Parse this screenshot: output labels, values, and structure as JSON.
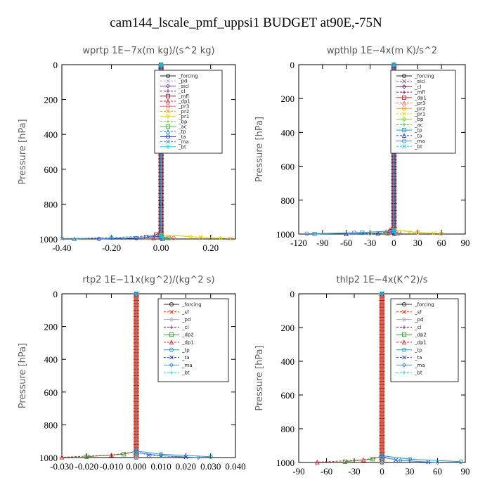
{
  "figure": {
    "title": "cam144_lscale_pmf_uppsi1  BUDGET at90E,-75N"
  },
  "colors": {
    "_forcing": "#222222",
    "_pd": "#b7a6d6",
    "_sicl": "#7b4f9d",
    "_cl": "#6a2a5a",
    "_mfl": "#8b1e3f",
    "_dp1": "#d62728",
    "_pr3": "#ff6b6b",
    "_pr2": "#ffa500",
    "_pr1": "#e6d800",
    "_bp": "#7ccd3a",
    "_ac": "#55b84a",
    "_tp": "#1f9ed8",
    "_ta": "#1f3fd8",
    "_ma": "#4a8fd0",
    "_bt": "#17d3e6",
    "_sf": "#ff2200",
    "_dp2": "#2f9e2f"
  },
  "chart_data": [
    {
      "type": "line",
      "title": "wprtp   1E−7x(m kg)/(s^2 kg)",
      "ylabel": "Pressure [hPa]",
      "xlim": [
        -0.4,
        0.3
      ],
      "ylim": [
        1000,
        0
      ],
      "xticks": [
        "-0.40",
        "-0.20",
        "0.00",
        "0.20"
      ],
      "xtick_values": [
        -0.4,
        -0.2,
        0.0,
        0.2
      ],
      "yticks": [
        "0",
        "200",
        "400",
        "600",
        "800",
        "1000"
      ],
      "legend_position": "top-right",
      "series": [
        {
          "name": "_forcing",
          "x": [
            0,
            0,
            0,
            0,
            0.01
          ],
          "y": [
            0,
            400,
            800,
            975,
            1000
          ]
        },
        {
          "name": "_pd",
          "x": [
            0,
            0,
            0.005
          ],
          "y": [
            0,
            975,
            1000
          ]
        },
        {
          "name": "_sicl",
          "x": [
            0,
            0,
            0
          ],
          "y": [
            0,
            975,
            1000
          ]
        },
        {
          "name": "_cl",
          "x": [
            0,
            0,
            0
          ],
          "y": [
            0,
            975,
            1000
          ]
        },
        {
          "name": "_mfl",
          "x": [
            0,
            0,
            -0.02,
            -0.06
          ],
          "y": [
            0,
            960,
            975,
            990
          ]
        },
        {
          "name": "_dp1",
          "x": [
            0,
            0,
            -0.01,
            -0.03
          ],
          "y": [
            0,
            965,
            980,
            995
          ]
        },
        {
          "name": "_pr3",
          "x": [
            0,
            0,
            0.05
          ],
          "y": [
            0,
            985,
            995
          ]
        },
        {
          "name": "_pr2",
          "x": [
            0,
            0,
            0.16,
            0.28
          ],
          "y": [
            0,
            975,
            990,
            998
          ]
        },
        {
          "name": "_pr1",
          "x": [
            0,
            0,
            0.12,
            0.24
          ],
          "y": [
            0,
            975,
            988,
            995
          ]
        },
        {
          "name": "_bp",
          "x": [
            0,
            0,
            -0.05,
            -0.15
          ],
          "y": [
            0,
            980,
            990,
            998
          ]
        },
        {
          "name": "_ac",
          "x": [
            0,
            0,
            0.03
          ],
          "y": [
            0,
            985,
            995
          ]
        },
        {
          "name": "_tp",
          "x": [
            0,
            0,
            -0.2,
            -0.35
          ],
          "y": [
            0,
            980,
            992,
            1000
          ]
        },
        {
          "name": "_ta",
          "x": [
            0,
            0,
            -0.1,
            -0.25
          ],
          "y": [
            0,
            985,
            995,
            1000
          ]
        },
        {
          "name": "_ma",
          "x": [
            0,
            0,
            -0.2,
            -0.4
          ],
          "y": [
            0,
            982,
            992,
            998
          ]
        },
        {
          "name": "_bt",
          "x": [
            0,
            0,
            0.01
          ],
          "y": [
            0,
            985,
            1000
          ]
        }
      ]
    },
    {
      "type": "line",
      "title": "wpthlp   1E−4x(m K)/s^2",
      "ylabel": "Pressure [hPa]",
      "xlim": [
        -120,
        90
      ],
      "ylim": [
        1000,
        0
      ],
      "xticks": [
        "-120",
        "-90",
        "-60",
        "-30",
        "0",
        "30",
        "60",
        "90"
      ],
      "xtick_values": [
        -120,
        -90,
        -60,
        -30,
        0,
        30,
        60,
        90
      ],
      "yticks": [
        "0",
        "200",
        "400",
        "600",
        "800",
        "1000"
      ],
      "legend_position": "top-right",
      "series": [
        {
          "name": "_forcing",
          "x": [
            0,
            0,
            0,
            1
          ],
          "y": [
            0,
            500,
            975,
            1000
          ]
        },
        {
          "name": "_sicl",
          "x": [
            0,
            0,
            0
          ],
          "y": [
            0,
            975,
            1000
          ]
        },
        {
          "name": "_cl",
          "x": [
            0,
            0,
            0
          ],
          "y": [
            0,
            975,
            1000
          ]
        },
        {
          "name": "_mfl",
          "x": [
            0,
            0,
            -5,
            -10
          ],
          "y": [
            0,
            960,
            975,
            985
          ]
        },
        {
          "name": "_dp1",
          "x": [
            0,
            0,
            -3,
            -8
          ],
          "y": [
            0,
            965,
            980,
            995
          ]
        },
        {
          "name": "_pr3",
          "x": [
            0,
            0,
            5
          ],
          "y": [
            0,
            980,
            995
          ]
        },
        {
          "name": "_pr2",
          "x": [
            0,
            0,
            30,
            60
          ],
          "y": [
            0,
            975,
            990,
            998
          ]
        },
        {
          "name": "_pr1",
          "x": [
            0,
            0,
            20,
            50
          ],
          "y": [
            0,
            975,
            988,
            995
          ]
        },
        {
          "name": "_bp",
          "x": [
            0,
            0,
            -10,
            -30
          ],
          "y": [
            0,
            980,
            990,
            998
          ]
        },
        {
          "name": "_ac",
          "x": [
            0,
            0,
            8
          ],
          "y": [
            0,
            985,
            995
          ]
        },
        {
          "name": "_tp",
          "x": [
            0,
            0,
            -40,
            -100
          ],
          "y": [
            0,
            980,
            992,
            1000
          ]
        },
        {
          "name": "_ta",
          "x": [
            0,
            0,
            -20,
            -60
          ],
          "y": [
            0,
            985,
            995,
            1000
          ]
        },
        {
          "name": "_ma",
          "x": [
            0,
            0,
            -50,
            -110
          ],
          "y": [
            0,
            982,
            992,
            998
          ]
        },
        {
          "name": "_bt",
          "x": [
            0,
            0,
            2
          ],
          "y": [
            0,
            985,
            1000
          ]
        }
      ]
    },
    {
      "type": "line",
      "title": "rtp2   1E−11x(kg^2)/(kg^2 s)",
      "ylabel": "Pressure [hPa]",
      "xlim": [
        -0.03,
        0.04
      ],
      "ylim": [
        1000,
        0
      ],
      "xticks": [
        "-0.030",
        "-0.020",
        "-0.010",
        "0.000",
        "0.010",
        "0.020",
        "0.030",
        "0.040"
      ],
      "xtick_values": [
        -0.03,
        -0.02,
        -0.01,
        0.0,
        0.01,
        0.02,
        0.03,
        0.04
      ],
      "yticks": [
        "0",
        "200",
        "400",
        "600",
        "800",
        "1000"
      ],
      "legend_position": "top-right",
      "series": [
        {
          "name": "_forcing",
          "x": [
            0,
            0,
            0
          ],
          "y": [
            0,
            975,
            1000
          ]
        },
        {
          "name": "_sf",
          "x": [
            0,
            0,
            0
          ],
          "y": [
            0,
            975,
            1000
          ]
        },
        {
          "name": "_pd",
          "x": [
            0,
            0,
            0
          ],
          "y": [
            0,
            975,
            1000
          ]
        },
        {
          "name": "_cl",
          "x": [
            0,
            0,
            0
          ],
          "y": [
            0,
            975,
            1000
          ]
        },
        {
          "name": "_dp2",
          "x": [
            0,
            0,
            -0.005,
            -0.02
          ],
          "y": [
            0,
            960,
            980,
            995
          ]
        },
        {
          "name": "_dp1",
          "x": [
            0,
            0,
            -0.01,
            -0.03
          ],
          "y": [
            0,
            965,
            985,
            998
          ]
        },
        {
          "name": "_tp",
          "x": [
            0,
            0,
            0.01,
            0.03
          ],
          "y": [
            0,
            960,
            980,
            995
          ]
        },
        {
          "name": "_ta",
          "x": [
            0,
            0,
            0.005,
            0.02
          ],
          "y": [
            0,
            965,
            985,
            998
          ]
        },
        {
          "name": "_ma",
          "x": [
            0,
            0,
            0.01,
            0.025
          ],
          "y": [
            0,
            970,
            988,
            1000
          ]
        },
        {
          "name": "_bt",
          "x": [
            0,
            0,
            0
          ],
          "y": [
            0,
            985,
            1000
          ]
        }
      ]
    },
    {
      "type": "line",
      "title": "thlp2   1E−4x(K^2)/s",
      "ylabel": "Pressure [hPa]",
      "xlim": [
        -90,
        90
      ],
      "ylim": [
        1000,
        0
      ],
      "xticks": [
        "-90",
        "-60",
        "-30",
        "0",
        "30",
        "60",
        "90"
      ],
      "xtick_values": [
        -90,
        -60,
        -30,
        0,
        30,
        60,
        90
      ],
      "yticks": [
        "0",
        "200",
        "400",
        "600",
        "800",
        "1000"
      ],
      "legend_position": "top-right",
      "series": [
        {
          "name": "_forcing",
          "x": [
            0,
            0,
            0
          ],
          "y": [
            0,
            975,
            1000
          ]
        },
        {
          "name": "_sf",
          "x": [
            0,
            0,
            0
          ],
          "y": [
            0,
            975,
            1000
          ]
        },
        {
          "name": "_pd",
          "x": [
            0,
            0,
            0
          ],
          "y": [
            0,
            975,
            1000
          ]
        },
        {
          "name": "_cl",
          "x": [
            0,
            0,
            0
          ],
          "y": [
            0,
            975,
            1000
          ]
        },
        {
          "name": "_dp2",
          "x": [
            0,
            0,
            -10,
            -40
          ],
          "y": [
            0,
            960,
            980,
            995
          ]
        },
        {
          "name": "_dp1",
          "x": [
            0,
            0,
            -20,
            -70
          ],
          "y": [
            0,
            965,
            985,
            998
          ]
        },
        {
          "name": "_tp",
          "x": [
            0,
            0,
            30,
            85
          ],
          "y": [
            0,
            960,
            980,
            995
          ]
        },
        {
          "name": "_ta",
          "x": [
            0,
            0,
            15,
            50
          ],
          "y": [
            0,
            965,
            985,
            998
          ]
        },
        {
          "name": "_ma",
          "x": [
            0,
            0,
            20,
            60
          ],
          "y": [
            0,
            970,
            988,
            1000
          ]
        },
        {
          "name": "_bt",
          "x": [
            0,
            0,
            0
          ],
          "y": [
            0,
            985,
            1000
          ]
        }
      ]
    }
  ]
}
